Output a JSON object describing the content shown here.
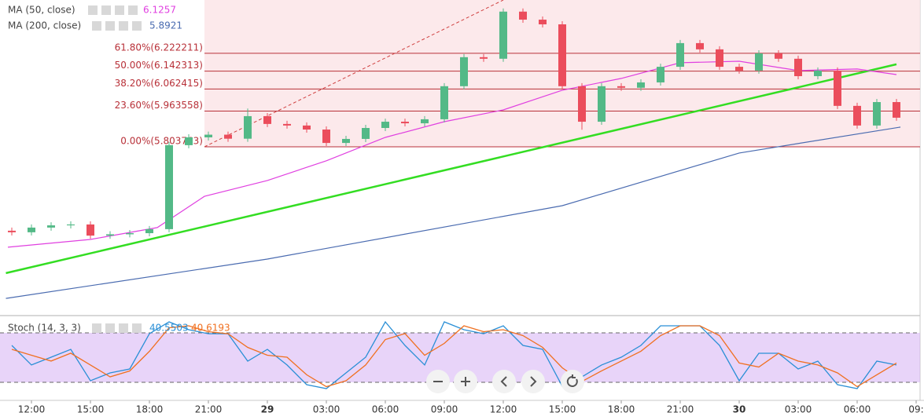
{
  "chart_data": [
    {
      "type": "candlestick",
      "x": [
        -1,
        0,
        1,
        2,
        3,
        4,
        5,
        6,
        7,
        8,
        9,
        10,
        11,
        12,
        13,
        14,
        15,
        16,
        17,
        18,
        19,
        20,
        21,
        22,
        23,
        24,
        25,
        26,
        27,
        28,
        29,
        30,
        31,
        32,
        33,
        34,
        35,
        36,
        37,
        38,
        39,
        40,
        41,
        42,
        43,
        44
      ],
      "open": [
        5.428,
        5.421,
        5.442,
        5.452,
        5.456,
        5.406,
        5.412,
        5.417,
        5.435,
        5.811,
        5.846,
        5.858,
        5.84,
        5.941,
        5.906,
        5.899,
        5.881,
        5.821,
        5.839,
        5.888,
        5.916,
        5.909,
        5.927,
        6.075,
        6.205,
        6.198,
        6.409,
        6.373,
        6.352,
        6.075,
        5.916,
        6.075,
        6.068,
        6.092,
        6.162,
        6.268,
        6.24,
        6.162,
        6.145,
        6.222,
        6.198,
        6.12,
        6.145,
        5.987,
        5.899,
        6.004
      ],
      "high": [
        5.442,
        5.456,
        5.466,
        5.47,
        5.47,
        5.426,
        5.431,
        5.449,
        5.825,
        5.86,
        5.872,
        5.872,
        5.975,
        5.955,
        5.92,
        5.913,
        5.895,
        5.853,
        5.902,
        5.93,
        5.93,
        5.941,
        6.089,
        6.219,
        6.219,
        6.423,
        6.423,
        6.387,
        6.366,
        6.089,
        6.089,
        6.089,
        6.106,
        6.176,
        6.282,
        6.282,
        6.254,
        6.176,
        6.236,
        6.236,
        6.212,
        6.159,
        6.159,
        6.001,
        6.018,
        6.018
      ],
      "low": [
        5.407,
        5.407,
        5.428,
        5.438,
        5.392,
        5.392,
        5.398,
        5.403,
        5.421,
        5.797,
        5.832,
        5.826,
        5.826,
        5.892,
        5.885,
        5.867,
        5.807,
        5.807,
        5.825,
        5.874,
        5.895,
        5.895,
        5.913,
        6.061,
        6.184,
        6.184,
        6.359,
        6.338,
        6.061,
        5.88,
        5.902,
        6.054,
        6.054,
        6.078,
        6.148,
        6.226,
        6.148,
        6.131,
        6.131,
        6.184,
        6.106,
        6.106,
        5.973,
        5.885,
        5.885,
        5.92
      ],
      "close": [
        5.421,
        5.442,
        5.452,
        5.456,
        5.406,
        5.412,
        5.417,
        5.435,
        5.811,
        5.846,
        5.858,
        5.84,
        5.941,
        5.906,
        5.899,
        5.881,
        5.821,
        5.839,
        5.888,
        5.916,
        5.909,
        5.927,
        6.075,
        6.205,
        6.198,
        6.409,
        6.373,
        6.352,
        6.075,
        5.916,
        6.075,
        6.068,
        6.092,
        6.162,
        6.268,
        6.24,
        6.162,
        6.145,
        6.222,
        6.198,
        6.12,
        6.145,
        5.987,
        5.899,
        6.004,
        5.934
      ],
      "up_color": "#53b987",
      "down_color": "#eb4d5c",
      "xlim": [
        -1.6,
        45.4
      ],
      "ylim": [
        5.055,
        6.461
      ],
      "xticks": [
        {
          "value": 0,
          "label": "12:00"
        },
        {
          "value": 3,
          "label": "15:00"
        },
        {
          "value": 6,
          "label": "18:00"
        },
        {
          "value": 9,
          "label": "21:00"
        },
        {
          "value": 12,
          "label": "29"
        },
        {
          "value": 15,
          "label": "03:00"
        },
        {
          "value": 18,
          "label": "06:00"
        },
        {
          "value": 21,
          "label": "09:00"
        },
        {
          "value": 24,
          "label": "12:00"
        },
        {
          "value": 27,
          "label": "15:00"
        },
        {
          "value": 30,
          "label": "18:00"
        },
        {
          "value": 33,
          "label": "21:00"
        },
        {
          "value": 36,
          "label": "30"
        },
        {
          "value": 39,
          "label": "03:00"
        },
        {
          "value": 42,
          "label": "06:00"
        },
        {
          "value": 45,
          "label": "09:"
        }
      ],
      "series": [
        {
          "name": "MA (50, close)",
          "last_value": 6.1257,
          "color": "#e040e0",
          "x": [
            -1.2,
            3,
            6.4,
            8.8,
            12,
            15,
            18,
            21,
            24,
            27,
            30,
            33,
            36,
            39,
            42,
            44
          ],
          "values": [
            5.354,
            5.389,
            5.442,
            5.582,
            5.653,
            5.741,
            5.846,
            5.916,
            5.969,
            6.057,
            6.11,
            6.18,
            6.187,
            6.145,
            6.152,
            6.127
          ]
        },
        {
          "name": "MA (200, close)",
          "last_value": 5.8921,
          "color": "#4a6bb0",
          "x": [
            -1.3,
            12,
            27,
            36,
            44.2
          ],
          "values": [
            5.125,
            5.301,
            5.54,
            5.776,
            5.892
          ]
        }
      ],
      "trendline": {
        "color": "#33dd22",
        "x": [
          -1.3,
          44
        ],
        "values": [
          5.238,
          6.173
        ]
      },
      "fib_anchor": {
        "color": "#d04040",
        "x": [
          8.8,
          24
        ],
        "values": [
          5.803763,
          6.461
        ]
      },
      "fib_color": "#b83038",
      "fib_levels": [
        {
          "label": "61.80%(6.222211)",
          "value": 6.222211
        },
        {
          "label": "50.00%(6.142313)",
          "value": 6.142313
        },
        {
          "label": "38.20%(6.062415)",
          "value": 6.062415
        },
        {
          "label": "23.60%(5.963558)",
          "value": 5.963558
        },
        {
          "label": "0.00%(5.803763)",
          "value": 5.803763
        }
      ]
    },
    {
      "type": "stochastic",
      "title": "Stoch (14, 3, 3)",
      "x": [
        -1,
        0,
        1,
        2,
        3,
        4,
        5,
        6,
        7,
        8,
        9,
        10,
        11,
        12,
        13,
        14,
        15,
        16,
        17,
        18,
        19,
        20,
        21,
        22,
        23,
        24,
        25,
        26,
        27,
        28,
        29,
        30,
        31,
        32,
        33,
        34,
        35,
        36,
        37,
        38,
        39,
        40,
        41,
        42,
        43,
        44
      ],
      "ylim": [
        0,
        100
      ],
      "bands": [
        20,
        80
      ],
      "band_color": "#d9b8f5",
      "series": [
        {
          "last_value": 40.5503,
          "color": "#2a8fd6",
          "values": [
            64.8,
            41.0,
            50.5,
            60.0,
            21.9,
            31.4,
            36.2,
            79.0,
            93.3,
            83.8,
            79.0,
            79.0,
            45.7,
            60.0,
            41.0,
            17.1,
            12.4,
            31.4,
            50.5,
            93.3,
            64.8,
            41.0,
            93.3,
            83.8,
            79.0,
            88.6,
            64.8,
            60.0,
            15.2,
            26.7,
            41.0,
            50.5,
            64.8,
            88.6,
            88.6,
            88.6,
            64.8,
            21.9,
            55.2,
            55.2,
            36.2,
            45.7,
            17.1,
            12.4,
            45.7,
            41.0
          ]
        },
        {
          "last_value": 40.6193,
          "color": "#f07020",
          "values": [
            60.0,
            52.9,
            45.8,
            55.3,
            41.0,
            26.7,
            33.8,
            57.6,
            86.2,
            88.6,
            81.4,
            79.0,
            62.4,
            52.9,
            50.5,
            29.1,
            14.8,
            21.9,
            41.0,
            71.9,
            79.1,
            52.9,
            67.2,
            88.6,
            81.4,
            83.8,
            76.7,
            62.4,
            37.6,
            21.0,
            33.9,
            45.8,
            57.7,
            76.7,
            88.6,
            88.6,
            76.7,
            43.4,
            38.6,
            55.2,
            45.7,
            41.0,
            31.4,
            14.8,
            29.1,
            43.4
          ]
        }
      ]
    }
  ]
}
